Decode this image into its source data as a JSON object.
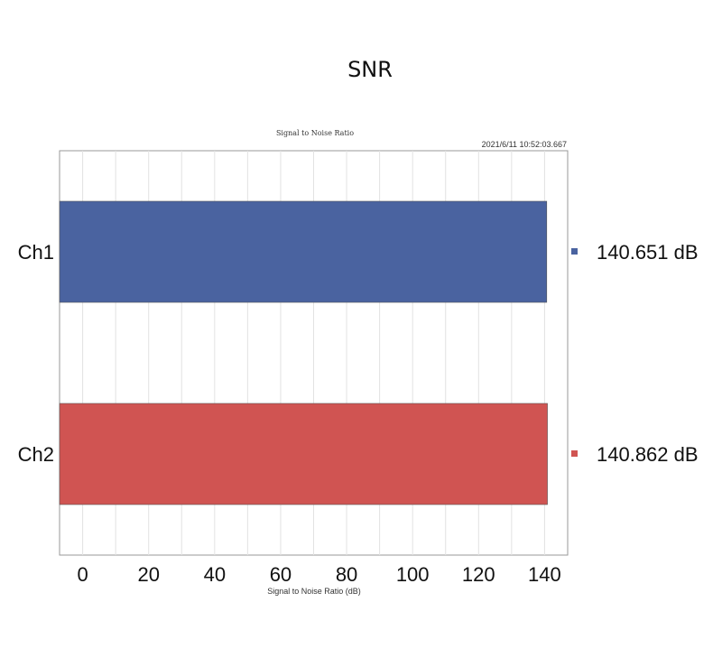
{
  "header": {
    "title": "SNR"
  },
  "chart_data": {
    "type": "bar",
    "orientation": "horizontal",
    "title": "Signal to Noise Ratio",
    "timestamp": "2021/6/11 10:52:03.667",
    "xlabel": "Signal to Noise Ratio (dB)",
    "xlim": [
      -7,
      147
    ],
    "xticks": [
      0,
      20,
      40,
      60,
      80,
      100,
      120,
      140
    ],
    "grid": true,
    "categories": [
      "Ch1",
      "Ch2"
    ],
    "values": [
      140.651,
      140.862
    ],
    "value_labels": [
      "140.651 dB",
      "140.862 dB"
    ],
    "colors": [
      "#4a63a0",
      "#d05452"
    ],
    "legend": "right"
  }
}
